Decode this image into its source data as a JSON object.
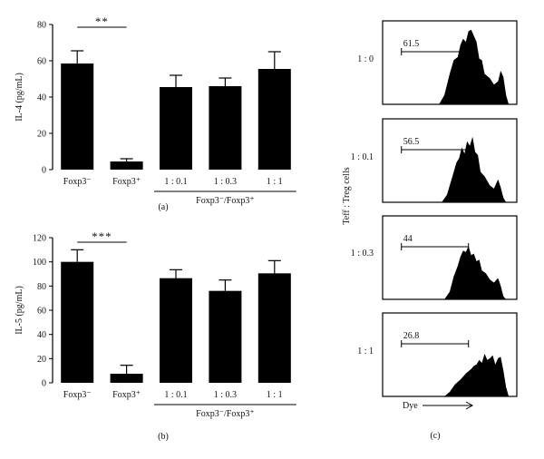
{
  "chart_data": [
    {
      "type": "bar",
      "panel_label": "(a)",
      "ylabel": "IL-4 (pg/mL)",
      "ylim": [
        0,
        80
      ],
      "yticks": [
        "0",
        "20",
        "40",
        "60",
        "80"
      ],
      "categories": [
        "Foxp3⁻",
        "Foxp3⁺",
        "1 : 0.1",
        "1 : 0.3",
        "1 : 1"
      ],
      "group_label": "Foxp3⁻/Foxp3⁺",
      "values": [
        58.5,
        4.5,
        45.5,
        46,
        55.5
      ],
      "errors": [
        7,
        1.5,
        6.5,
        4.5,
        9.5
      ],
      "significance": "**",
      "color": "#000000"
    },
    {
      "type": "bar",
      "panel_label": "(b)",
      "ylabel": "IL-5 (pg/mL)",
      "ylim": [
        0,
        120
      ],
      "yticks": [
        "0",
        "20",
        "40",
        "60",
        "80",
        "100",
        "120"
      ],
      "categories": [
        "Foxp3⁻",
        "Foxp3⁺",
        "1 : 0.1",
        "1 : 0.3",
        "1 : 1"
      ],
      "group_label": "Foxp3⁻/Foxp3⁺",
      "values": [
        100,
        7.5,
        86.5,
        76,
        90.5
      ],
      "errors": [
        10,
        7,
        7,
        9,
        10.5
      ],
      "significance": "***",
      "color": "#000000"
    },
    {
      "type": "histogram",
      "panel_label": "(c)",
      "row_axis_label": "Teff : Treg cells",
      "x_axis_label": "Dye",
      "histograms": [
        {
          "label": "1 : 0",
          "gate_value": "61.5"
        },
        {
          "label": "1 : 0.1",
          "gate_value": "56.5"
        },
        {
          "label": "1 : 0.3",
          "gate_value": "44"
        },
        {
          "label": "1 : 1",
          "gate_value": "26.8"
        }
      ]
    }
  ]
}
